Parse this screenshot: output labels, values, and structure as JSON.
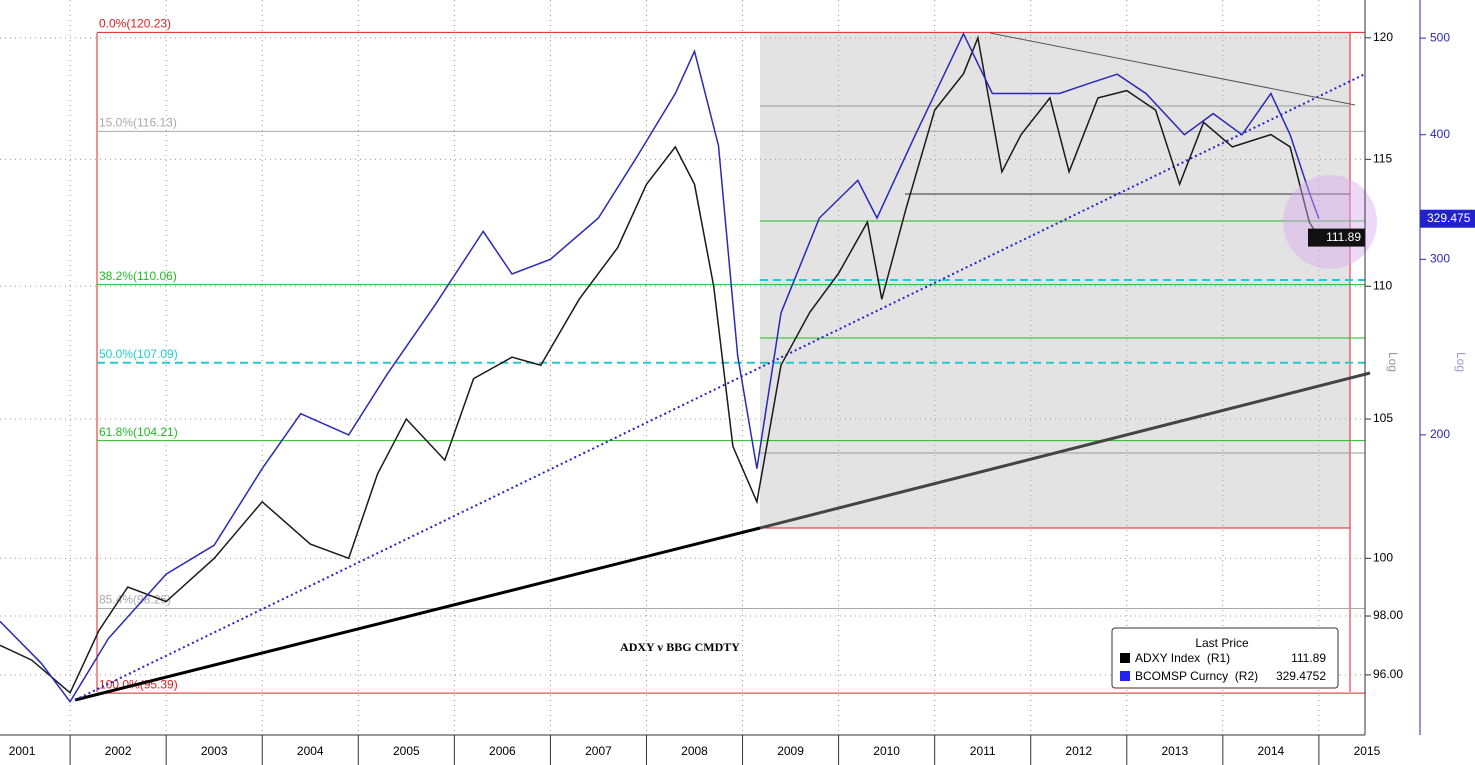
{
  "chart_data": {
    "type": "line",
    "title": "ADXY v BBG CMDTY",
    "categories": [
      "2001",
      "2002",
      "2003",
      "2004",
      "2005",
      "2006",
      "2007",
      "2008",
      "2009",
      "2010",
      "2011",
      "2012",
      "2013",
      "2014",
      "2015"
    ],
    "xlim": [
      2001.27,
      2015.48
    ],
    "xticks": [
      2002,
      2003,
      2004,
      2005,
      2006,
      2007,
      2008,
      2009,
      2010,
      2011,
      2012,
      2013,
      2014,
      2015
    ],
    "ylim": [
      94.0,
      121.6
    ],
    "yticks": [
      120,
      115,
      110,
      105,
      100,
      {
        "value": 98,
        "label": "98.00"
      },
      {
        "value": 96,
        "label": "96.00"
      }
    ],
    "y2lim": [
      100,
      546
    ],
    "y2ticks": [
      500,
      400,
      300,
      200
    ],
    "log_scale": true,
    "grid": true,
    "axis_label": "Log",
    "y2_axis_label": "Log",
    "legend_title": "Last Price",
    "legend_position": "lower right",
    "fib_levels": [
      {
        "label": "0.0%(120.23)",
        "value": 120.23,
        "color": "#e02020"
      },
      {
        "label": "15.0%(116.13)",
        "value": 116.13,
        "color": "#aaaaaa"
      },
      {
        "label": "38.2%(110.06)",
        "value": 110.06,
        "color": "#22bb22"
      },
      {
        "label": "50.0%(107.09)",
        "value": 107.09,
        "color": "#22cccc"
      },
      {
        "label": "61.8%(104.21)",
        "value": 104.21,
        "color": "#22bb22"
      },
      {
        "label": "85.4%(98.26)",
        "value": 98.26,
        "color": "#aaaaaa"
      },
      {
        "label": "100.0%(95.39)",
        "value": 95.39,
        "color": "#e02020"
      }
    ],
    "series": [
      {
        "name": "ADXY Index  (R1)",
        "color": "#1a1a1a",
        "last": 111.89,
        "x": [
          2001.27,
          2001.6,
          2002.0,
          2002.3,
          2002.6,
          2003.0,
          2003.5,
          2004.0,
          2004.5,
          2004.9,
          2005.2,
          2005.5,
          2005.9,
          2006.2,
          2006.6,
          2006.9,
          2007.3,
          2007.7,
          2008.0,
          2008.3,
          2008.5,
          2008.7,
          2008.9,
          2009.15,
          2009.4,
          2009.7,
          2010.0,
          2010.3,
          2010.45,
          2010.7,
          2011.0,
          2011.3,
          2011.45,
          2011.7,
          2011.9,
          2012.2,
          2012.4,
          2012.7,
          2013.0,
          2013.3,
          2013.55,
          2013.8,
          2014.1,
          2014.5,
          2014.7,
          2014.9,
          2015.0
        ],
        "values": [
          97,
          96.5,
          95.4,
          97.5,
          99,
          98.5,
          100,
          102,
          100.5,
          100,
          103,
          105,
          103.5,
          106.5,
          107.3,
          107,
          109.5,
          111.5,
          114,
          115.5,
          114,
          110,
          104,
          102,
          107,
          109,
          110.5,
          112.5,
          109.5,
          113,
          117,
          118.5,
          120,
          114.5,
          116,
          117.5,
          114.5,
          117.5,
          117.8,
          117,
          114,
          116.5,
          115.5,
          116,
          115.5,
          112.5,
          111.89
        ]
      },
      {
        "name": "BCOMSP Curncy  (R2)",
        "color": "#2a2ab8",
        "axis": "y2",
        "last": 329.4752,
        "last_label": "329.475",
        "x": [
          2001.27,
          2001.7,
          2002.0,
          2002.4,
          2003.0,
          2003.5,
          2004.0,
          2004.4,
          2004.9,
          2005.3,
          2005.8,
          2006.3,
          2006.6,
          2007.0,
          2007.5,
          2007.9,
          2008.3,
          2008.5,
          2008.75,
          2008.95,
          2009.15,
          2009.4,
          2009.8,
          2010.2,
          2010.4,
          2010.8,
          2011.1,
          2011.3,
          2011.6,
          2011.9,
          2012.3,
          2012.6,
          2012.9,
          2013.2,
          2013.6,
          2013.9,
          2014.2,
          2014.5,
          2014.7,
          2014.9,
          2015.0
        ],
        "values": [
          130,
          118,
          108,
          125,
          145,
          155,
          185,
          210,
          200,
          230,
          270,
          320,
          290,
          300,
          330,
          380,
          440,
          485,
          390,
          240,
          185,
          265,
          330,
          360,
          330,
          400,
          460,
          505,
          440,
          440,
          440,
          450,
          460,
          440,
          400,
          420,
          400,
          440,
          400,
          350,
          329.475
        ]
      }
    ]
  }
}
